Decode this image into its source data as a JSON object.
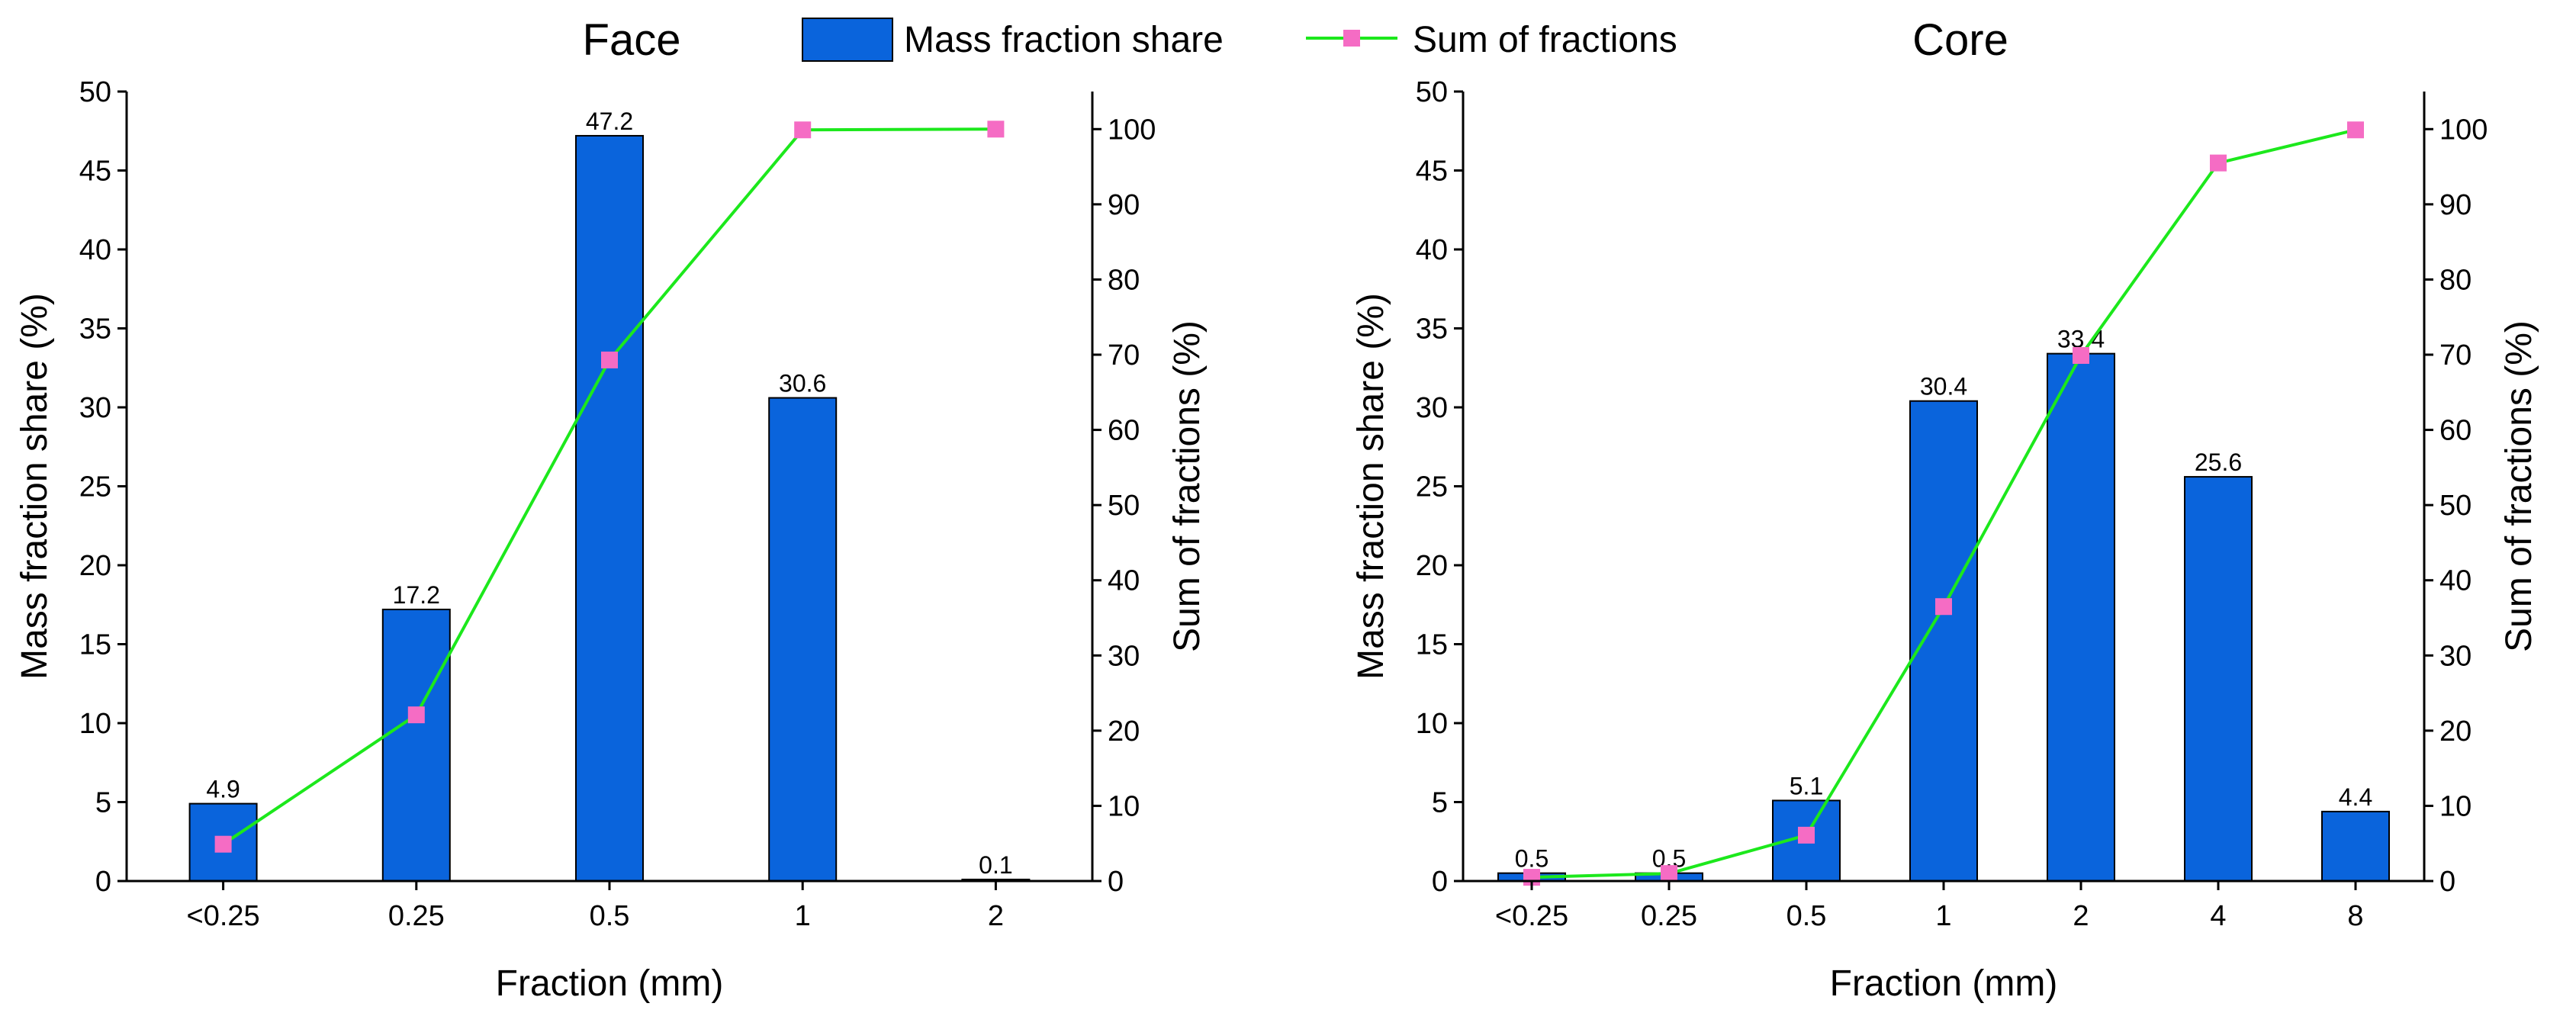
{
  "colors": {
    "bar": "#0a64dc",
    "line": "#1ce81c",
    "marker": "#f56cc4"
  },
  "legend": {
    "bar_label": "Mass fraction share",
    "line_label": "Sum of fractions"
  },
  "chart_data": [
    {
      "type": "bar",
      "title": "Face",
      "xlabel": "Fraction (mm)",
      "ylabel": "Mass fraction share (%)",
      "y2label": "Sum of fractions (%)",
      "ylim": [
        0,
        50
      ],
      "y2lim": [
        0,
        105
      ],
      "yticks": [
        0,
        5,
        10,
        15,
        20,
        25,
        30,
        35,
        40,
        45,
        50
      ],
      "y2ticks": [
        0,
        10,
        20,
        30,
        40,
        50,
        60,
        70,
        80,
        90,
        100
      ],
      "categories": [
        "<0.25",
        "0.25",
        "0.5",
        "1",
        "2"
      ],
      "series": [
        {
          "name": "Mass fraction share",
          "kind": "bar",
          "axis": "left",
          "values": [
            4.9,
            17.2,
            47.2,
            30.6,
            0.1
          ],
          "labels": [
            "4.9",
            "17.2",
            "47.2",
            "30.6",
            "0.1"
          ]
        },
        {
          "name": "Sum of fractions",
          "kind": "line",
          "axis": "right",
          "values": [
            4.9,
            22.1,
            69.3,
            99.9,
            100
          ]
        }
      ]
    },
    {
      "type": "bar",
      "title": "Core",
      "xlabel": "Fraction (mm)",
      "ylabel": "Mass fraction share (%)",
      "y2label": "Sum of fractions (%)",
      "ylim": [
        0,
        50
      ],
      "y2lim": [
        0,
        105
      ],
      "yticks": [
        0,
        5,
        10,
        15,
        20,
        25,
        30,
        35,
        40,
        45,
        50
      ],
      "y2ticks": [
        0,
        10,
        20,
        30,
        40,
        50,
        60,
        70,
        80,
        90,
        100
      ],
      "categories": [
        "<0.25",
        "0.25",
        "0.5",
        "1",
        "2",
        "4",
        "8"
      ],
      "series": [
        {
          "name": "Mass fraction share",
          "kind": "bar",
          "axis": "left",
          "values": [
            0.5,
            0.5,
            5.1,
            30.4,
            33.4,
            25.6,
            4.4
          ],
          "labels": [
            "0.5",
            "0.5",
            "5.1",
            "30.4",
            "33.4",
            "25.6",
            "4.4"
          ]
        },
        {
          "name": "Sum of fractions",
          "kind": "line",
          "axis": "right",
          "values": [
            0.5,
            1.0,
            6.1,
            36.5,
            69.9,
            95.5,
            99.9
          ]
        }
      ]
    }
  ]
}
